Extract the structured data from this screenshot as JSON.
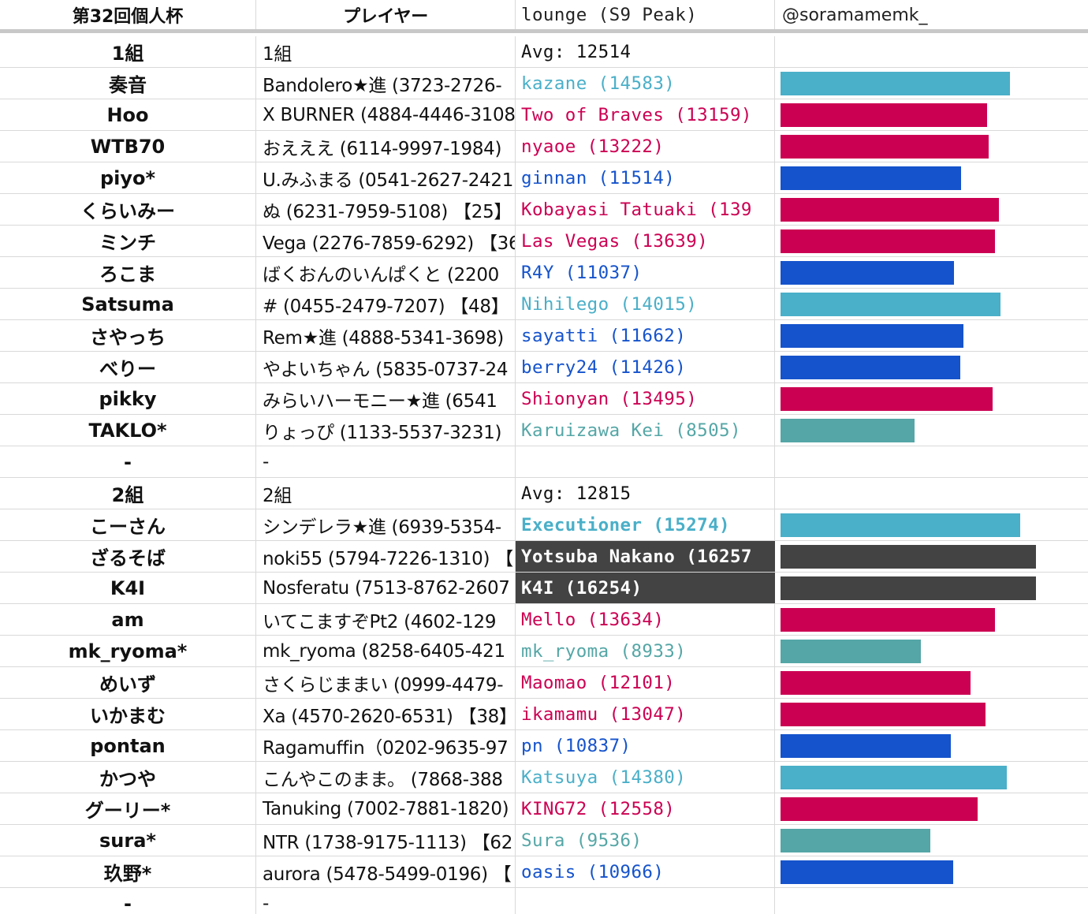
{
  "header": {
    "tournament": "第32回個人杯",
    "player_col": "プレイヤー",
    "lounge_col": "lounge (S9 Peak)",
    "credit": "@soramamemk_"
  },
  "colors": {
    "cyan": "#4aafc8",
    "crimson": "#cc0052",
    "blue": "#1553cc",
    "teal": "#55a6a6",
    "dark": "#434343",
    "grid": "#d9d9d9"
  },
  "bar_scale_max": 16257,
  "rows": [
    {
      "kind": "group",
      "name": "1組",
      "player": "1組",
      "lounge": "Avg: 12514"
    },
    {
      "kind": "player",
      "name": "奏音",
      "player": "Bandolero★進 (3723-2726-",
      "lounge": "kazane (14583)",
      "rating": 14583,
      "color": "cyan"
    },
    {
      "kind": "player",
      "name": "Hoo",
      "player": "X BURNER (4884-4446-3108",
      "lounge": "Two of Braves (13159)",
      "rating": 13159,
      "color": "crimson"
    },
    {
      "kind": "player",
      "name": "WTB70",
      "player": "おえええ (6114-9997-1984)",
      "lounge": "nyaoe (13222)",
      "rating": 13222,
      "color": "crimson"
    },
    {
      "kind": "player",
      "name": "piyo*",
      "player": "U.みふまる (0541-2627-2421",
      "lounge": "ginnan (11514)",
      "rating": 11514,
      "color": "blue"
    },
    {
      "kind": "player",
      "name": "くらいみー",
      "player": "ぬ (6231-7959-5108) 【25】",
      "lounge": "Kobayasi Tatuaki (139",
      "rating": 13900,
      "color": "crimson"
    },
    {
      "kind": "player",
      "name": "ミンチ",
      "player": "Vega (2276-7859-6292) 【36",
      "lounge": "Las Vegas (13639)",
      "rating": 13639,
      "color": "crimson"
    },
    {
      "kind": "player",
      "name": "ろこま",
      "player": "ばくおんのいんぱくと (2200",
      "lounge": "R4Y (11037)",
      "rating": 11037,
      "color": "blue"
    },
    {
      "kind": "player",
      "name": "Satsuma",
      "player": "# (0455-2479-7207) 【48】",
      "lounge": "Nihilego (14015)",
      "rating": 14015,
      "color": "cyan"
    },
    {
      "kind": "player",
      "name": "さやっち",
      "player": "Rem★進 (4888-5341-3698)",
      "lounge": "sayatti (11662)",
      "rating": 11662,
      "color": "blue"
    },
    {
      "kind": "player",
      "name": "べりー",
      "player": "やよいちゃん (5835-0737-24",
      "lounge": "berry24 (11426)",
      "rating": 11426,
      "color": "blue"
    },
    {
      "kind": "player",
      "name": "pikky",
      "player": "みらいハーモニー★進 (6541",
      "lounge": "Shionyan (13495)",
      "rating": 13495,
      "color": "crimson"
    },
    {
      "kind": "player",
      "name": "TAKLO*",
      "player": "りょっぴ (1133-5537-3231)",
      "lounge": "Karuizawa Kei (8505)",
      "rating": 8505,
      "color": "teal"
    },
    {
      "kind": "blank",
      "name": "-",
      "player": "-",
      "lounge": ""
    },
    {
      "kind": "group",
      "name": "2組",
      "player": "2組",
      "lounge": "Avg: 12815"
    },
    {
      "kind": "player",
      "name": "こーさん",
      "player": "シンデレラ★進 (6939-5354-",
      "lounge": "Executioner (15274)",
      "rating": 15274,
      "color": "cyan",
      "bold": true
    },
    {
      "kind": "player",
      "name": "ざるそば",
      "player": "noki55 (5794-7226-1310) 【",
      "lounge": "Yotsuba Nakano (16257",
      "rating": 16257,
      "color": "dark",
      "highlight": true
    },
    {
      "kind": "player",
      "name": "K4I",
      "player": "Nosferatu (7513-8762-2607",
      "lounge": "K4I (16254)",
      "rating": 16254,
      "color": "dark",
      "highlight": true
    },
    {
      "kind": "player",
      "name": "am",
      "player": "いてこますぞPt2 (4602-129",
      "lounge": "Mello (13634)",
      "rating": 13634,
      "color": "crimson"
    },
    {
      "kind": "player",
      "name": "mk_ryoma*",
      "player": "mk_ryoma (8258-6405-421",
      "lounge": "mk_ryoma (8933)",
      "rating": 8933,
      "color": "teal"
    },
    {
      "kind": "player",
      "name": "めいず",
      "player": "さくらじままい (0999-4479-",
      "lounge": "Maomao (12101)",
      "rating": 12101,
      "color": "crimson"
    },
    {
      "kind": "player",
      "name": "いかまむ",
      "player": "Xa (4570-2620-6531) 【38】",
      "lounge": "ikamamu (13047)",
      "rating": 13047,
      "color": "crimson"
    },
    {
      "kind": "player",
      "name": "pontan",
      "player": "Ragamuffin（0202-9635-97",
      "lounge": "pn (10837)",
      "rating": 10837,
      "color": "blue"
    },
    {
      "kind": "player",
      "name": "かつや",
      "player": "こんやこのまま。 (7868-388",
      "lounge": "Katsuya (14380)",
      "rating": 14380,
      "color": "cyan"
    },
    {
      "kind": "player",
      "name": "グーリー*",
      "player": "Tanuking (7002-7881-1820)",
      "lounge": "KING72 (12558)",
      "rating": 12558,
      "color": "crimson"
    },
    {
      "kind": "player",
      "name": "sura*",
      "player": "NTR (1738-9175-1113) 【62",
      "lounge": "Sura (9536)",
      "rating": 9536,
      "color": "teal"
    },
    {
      "kind": "player",
      "name": "玖野*",
      "player": "aurora (5478-5499-0196) 【",
      "lounge": "oasis (10966)",
      "rating": 10966,
      "color": "blue"
    },
    {
      "kind": "blank",
      "name": "-",
      "player": "-",
      "lounge": ""
    }
  ]
}
